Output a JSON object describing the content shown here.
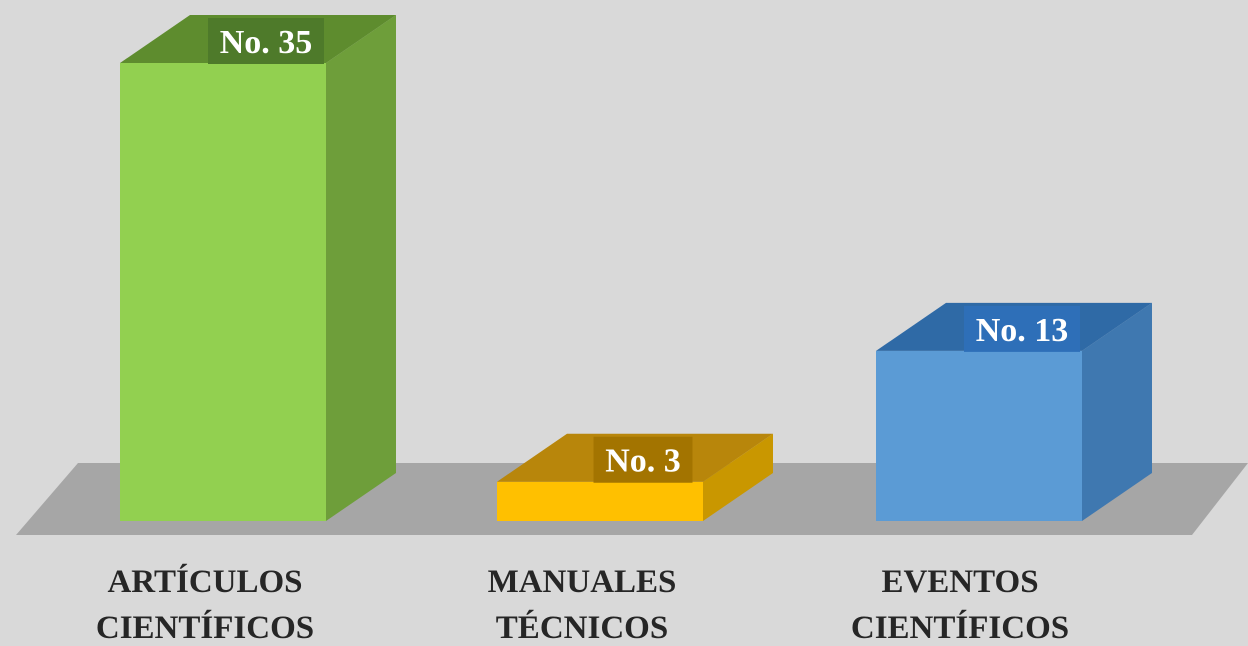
{
  "chart_data": {
    "type": "bar",
    "categories": [
      [
        "ARTÍCULOS",
        "CIENTÍFICOS"
      ],
      [
        "MANUALES",
        "TÉCNICOS"
      ],
      [
        "EVENTOS",
        "CIENTÍFICOS"
      ]
    ],
    "values": [
      35,
      3,
      13
    ],
    "data_labels": [
      "No. 35",
      "No. 3",
      "No. 13"
    ],
    "colors": {
      "front": [
        "#92d050",
        "#ffc000",
        "#5b9bd5"
      ],
      "side": [
        "#6e9e3a",
        "#c99700",
        "#3f78b0"
      ],
      "top": [
        "#5e8c2e",
        "#b8860b",
        "#2f6aa6"
      ],
      "label_bg": [
        "#4e7a2a",
        "#a37400",
        "#2e6fb8"
      ],
      "floor": "#a6a6a6"
    },
    "ylim": [
      0,
      35
    ],
    "grid": false,
    "legend": "none",
    "title": "",
    "xlabel": "",
    "ylabel": ""
  }
}
